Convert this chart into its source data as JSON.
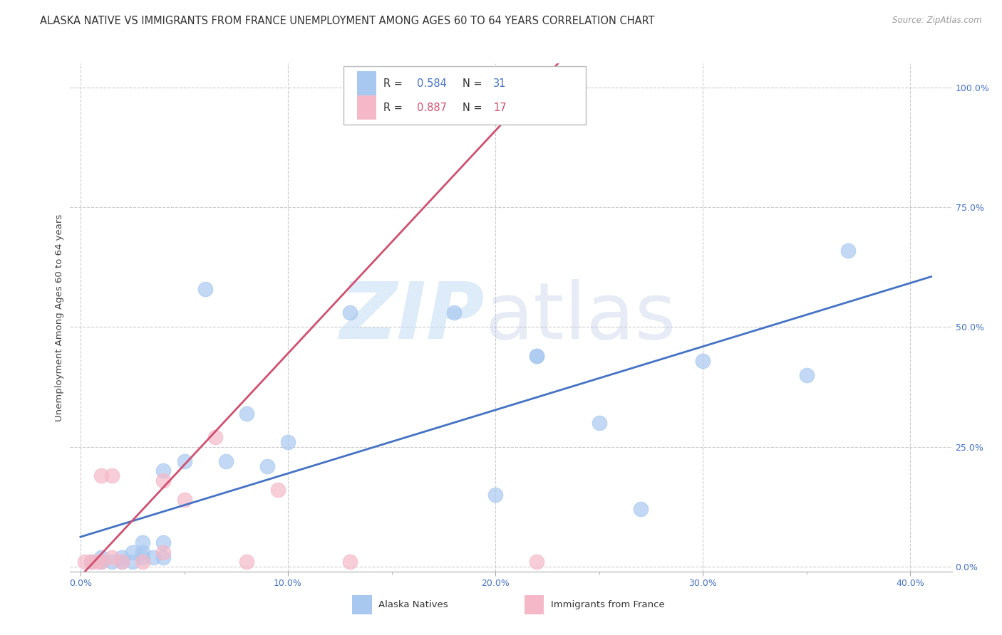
{
  "title": "ALASKA NATIVE VS IMMIGRANTS FROM FRANCE UNEMPLOYMENT AMONG AGES 60 TO 64 YEARS CORRELATION CHART",
  "source": "Source: ZipAtlas.com",
  "ylabel": "Unemployment Among Ages 60 to 64 years",
  "xlabel_ticks": [
    "0.0%",
    "10.0%",
    "20.0%",
    "30.0%",
    "40.0%"
  ],
  "xlabel_vals": [
    0.0,
    0.1,
    0.2,
    0.3,
    0.4
  ],
  "ylabel_ticks_right": [
    "0.0%",
    "25.0%",
    "50.0%",
    "75.0%",
    "100.0%"
  ],
  "ylabel_vals_right": [
    0.0,
    0.25,
    0.5,
    0.75,
    1.0
  ],
  "xlim": [
    -0.005,
    0.42
  ],
  "ylim": [
    -0.01,
    1.05
  ],
  "blue_R": "0.584",
  "blue_N": "31",
  "pink_R": "0.887",
  "pink_N": "17",
  "blue_color": "#a8c8f0",
  "pink_color": "#f5b8c8",
  "blue_line_color": "#4472c4",
  "pink_line_color": "#d05070",
  "alaska_natives_x": [
    0.005,
    0.01,
    0.01,
    0.015,
    0.02,
    0.02,
    0.025,
    0.025,
    0.03,
    0.03,
    0.03,
    0.035,
    0.04,
    0.04,
    0.04,
    0.05,
    0.06,
    0.07,
    0.08,
    0.09,
    0.1,
    0.13,
    0.18,
    0.2,
    0.22,
    0.22,
    0.25,
    0.27,
    0.3,
    0.35,
    0.37
  ],
  "alaska_natives_y": [
    0.01,
    0.01,
    0.02,
    0.01,
    0.01,
    0.02,
    0.01,
    0.03,
    0.02,
    0.03,
    0.05,
    0.02,
    0.02,
    0.05,
    0.2,
    0.22,
    0.58,
    0.22,
    0.32,
    0.21,
    0.26,
    0.53,
    0.53,
    0.15,
    0.44,
    0.44,
    0.3,
    0.12,
    0.43,
    0.4,
    0.66
  ],
  "immigrants_x": [
    0.002,
    0.005,
    0.008,
    0.01,
    0.01,
    0.015,
    0.015,
    0.02,
    0.03,
    0.04,
    0.04,
    0.05,
    0.065,
    0.08,
    0.095,
    0.13,
    0.22
  ],
  "immigrants_y": [
    0.01,
    0.01,
    0.01,
    0.01,
    0.19,
    0.02,
    0.19,
    0.01,
    0.01,
    0.03,
    0.18,
    0.14,
    0.27,
    0.01,
    0.16,
    0.01,
    0.01
  ],
  "grid_color": "#cccccc",
  "background_color": "#ffffff",
  "title_fontsize": 10.5,
  "axis_label_fontsize": 9.5,
  "tick_fontsize": 9
}
